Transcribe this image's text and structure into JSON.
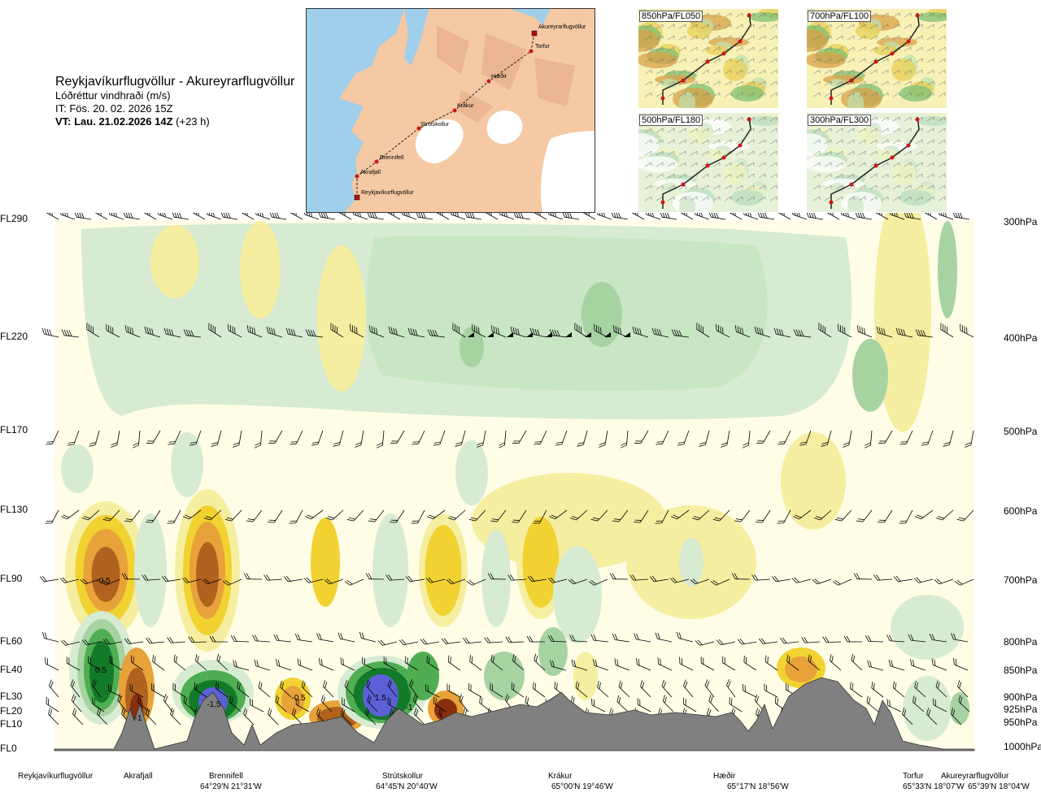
{
  "header": {
    "route_title": "Reykjavíkurflugvöllur - Akureyrarflugvöllur",
    "parameter": "Lóðréttur vindhraði (m/s)",
    "issue_time": "IT: Fös. 20. 02. 2026 15Z",
    "valid_time": "VT: Lau. 21.02.2026 14Z",
    "lead_time": "(+23 h)"
  },
  "route_map": {
    "waypoints": [
      {
        "name": "Akureyrarflugvöllur"
      },
      {
        "name": "Torfur"
      },
      {
        "name": "Hæðir"
      },
      {
        "name": "Krákur"
      },
      {
        "name": "Strútskollur"
      },
      {
        "name": "Brennifell"
      },
      {
        "name": "Akrafjall"
      },
      {
        "name": "Reykjavíkurflugvöllur"
      }
    ]
  },
  "level_maps": [
    {
      "label": "850hPa/FL050"
    },
    {
      "label": "700hPa/FL100"
    },
    {
      "label": "500hPa/FL180"
    },
    {
      "label": "300hPa/FL300"
    }
  ],
  "flight_levels": [
    "FL290",
    "FL220",
    "FL170",
    "FL130",
    "FL90",
    "FL60",
    "FL40",
    "FL30",
    "FL20",
    "FL10",
    "FL0"
  ],
  "pressure_levels": [
    "300hPa",
    "400hPa",
    "500hPa",
    "600hPa",
    "700hPa",
    "800hPa",
    "850hPa",
    "900hPa",
    "925hPa",
    "950hPa",
    "1000hPa"
  ],
  "contour_labels": [
    "-0.5",
    "0.5",
    "-0.5",
    "1.5",
    "-1.5",
    "-1",
    "-1"
  ],
  "bottom_points": [
    {
      "name": "Reykjavíkurflugvöllur",
      "coord": ""
    },
    {
      "name": "Akrafjall",
      "coord": ""
    },
    {
      "name": "Brennifell",
      "coord": "64°29'N 21°31'W"
    },
    {
      "name": "Strútskollur",
      "coord": "64°45'N 20°40'W"
    },
    {
      "name": "Krákur",
      "coord": "65°00'N 19°46'W"
    },
    {
      "name": "Hæðir",
      "coord": "65°17'N 18°56'W"
    },
    {
      "name": "Torfur",
      "coord": "65°33'N 18°07'W"
    },
    {
      "name": "Akureyrarflugvöllur",
      "coord": "65°39'N 18°04'W"
    }
  ],
  "colors": {
    "terrain": "#808080",
    "land": "#f4c9a4",
    "sea": "#9fcfea",
    "glacier": "#ffffff",
    "neutral": "#fffde6",
    "up_light": "#f5eea0",
    "up_mid": "#f1d230",
    "up_orange": "#e7a23a",
    "up_brown": "#b0621e",
    "up_dark": "#8a2f0e",
    "down_light": "#d6ebd2",
    "down_mid": "#a7d3a3",
    "down_green": "#4fae52",
    "down_dark": "#137a2a",
    "down_blue": "#5c60d6",
    "route": "#d11414"
  }
}
